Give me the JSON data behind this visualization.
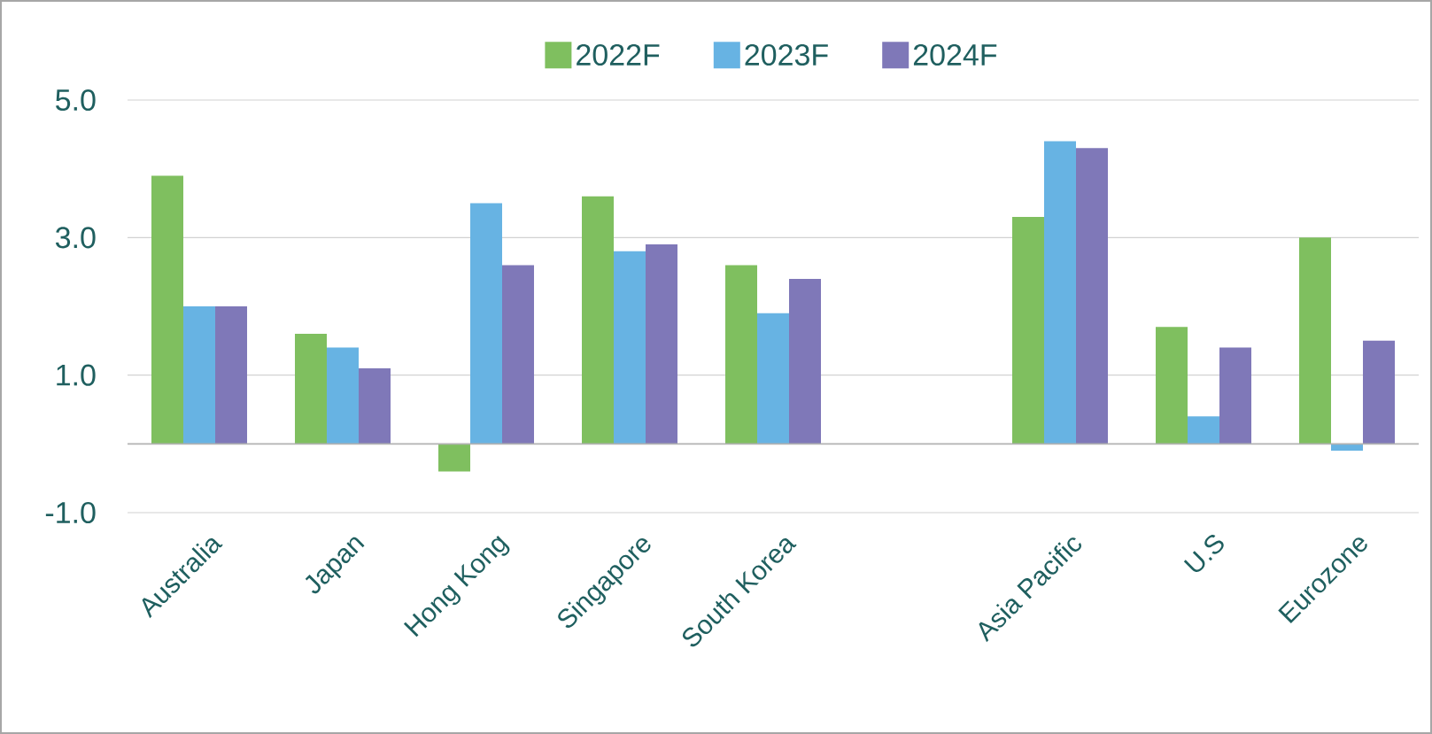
{
  "chart_data": {
    "type": "bar",
    "categories": [
      "Australia",
      "Japan",
      "Hong Kong",
      "Singapore",
      "South Korea",
      null,
      "Asia Pacific",
      "U.S",
      "Eurozone"
    ],
    "series": [
      {
        "name": "2022F",
        "color": "#7fbf5f",
        "values": [
          3.9,
          1.6,
          -0.4,
          3.6,
          2.6,
          null,
          3.3,
          1.7,
          3.0
        ]
      },
      {
        "name": "2023F",
        "color": "#67b3e3",
        "values": [
          2.0,
          1.4,
          3.5,
          2.8,
          1.9,
          null,
          4.4,
          0.4,
          -0.1
        ]
      },
      {
        "name": "2024F",
        "color": "#7f78b8",
        "values": [
          2.0,
          1.1,
          2.6,
          2.9,
          2.4,
          null,
          4.3,
          1.4,
          1.5
        ]
      }
    ],
    "ylim": [
      -1,
      5
    ],
    "yticks": [
      {
        "value": -1,
        "label": "-1.0"
      },
      {
        "value": 1,
        "label": "1.0"
      },
      {
        "value": 3,
        "label": "3.0"
      },
      {
        "value": 5,
        "label": "5.0"
      }
    ],
    "grid": "y",
    "legend": "top"
  }
}
